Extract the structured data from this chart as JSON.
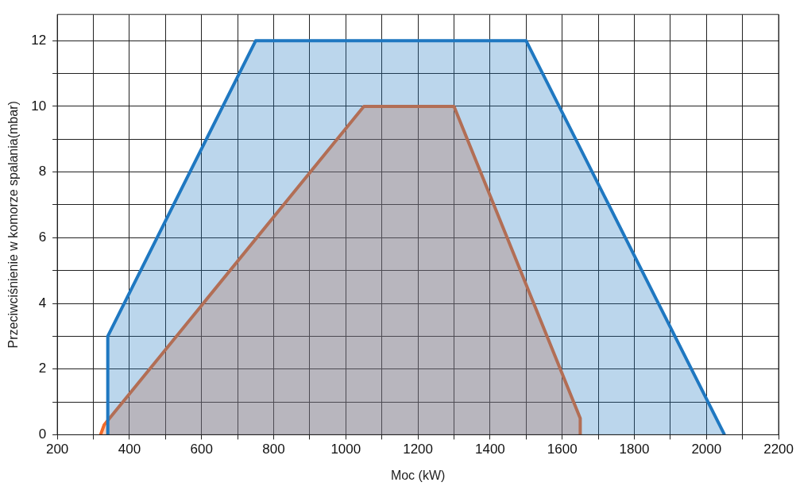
{
  "chart_data": {
    "type": "area",
    "xlabel": "Moc (kW)",
    "ylabel": "Przeciwciśnienie w komorze spalania(mbar)",
    "series": [
      {
        "color": "#1f78c1",
        "x": [
          340,
          340,
          750,
          1500,
          2050
        ],
        "values": [
          0,
          3,
          12,
          12,
          0
        ]
      },
      {
        "color": "#f26a28",
        "x": [
          320,
          330,
          1050,
          1300,
          1650,
          1650
        ],
        "values": [
          0,
          0.3,
          10,
          10,
          0.5,
          0
        ]
      }
    ],
    "xlim": [
      200,
      2200
    ],
    "xticks": [
      200,
      {
        "value": 300,
        "label": null
      },
      400,
      {
        "value": 500,
        "label": null
      },
      600,
      {
        "value": 700,
        "label": null
      },
      800,
      {
        "value": 900,
        "label": null
      },
      1000,
      {
        "value": 1100,
        "label": null
      },
      1200,
      {
        "value": 1300,
        "label": null
      },
      1400,
      {
        "value": 1500,
        "label": null
      },
      1600,
      {
        "value": 1700,
        "label": null
      },
      1800,
      {
        "value": 1900,
        "label": null
      },
      2000,
      {
        "value": 2100,
        "label": null
      },
      2200
    ],
    "ylim": [
      0,
      12.8
    ],
    "yticks": [
      0,
      {
        "value": 1,
        "label": null
      },
      2,
      {
        "value": 3,
        "label": null
      },
      4,
      {
        "value": 5,
        "label": null
      },
      6,
      {
        "value": 7,
        "label": null
      },
      8,
      {
        "value": 9,
        "label": null
      },
      10,
      {
        "value": 11,
        "label": null
      },
      12
    ],
    "grid": true,
    "marker": "none",
    "line_style": "solid"
  }
}
